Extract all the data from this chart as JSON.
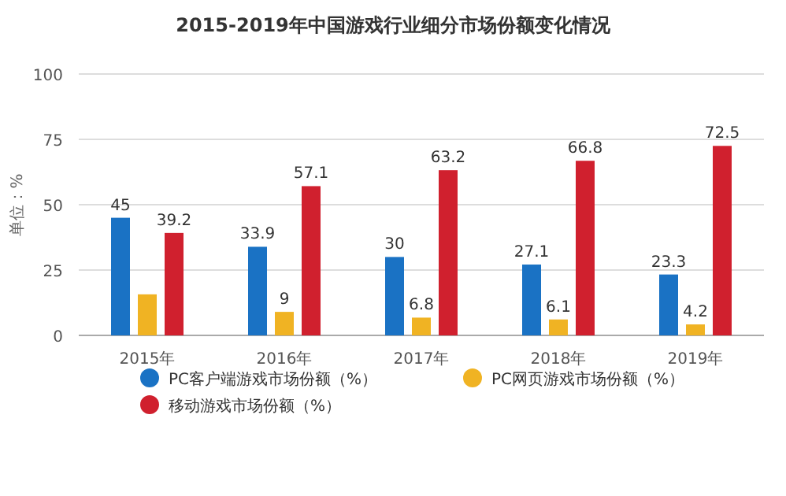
{
  "chart_data": {
    "type": "bar",
    "title": "2015-2019年中国游戏行业细分市场份额变化情况",
    "ylabel": "单位：%",
    "categories": [
      "2015年",
      "2016年",
      "2017年",
      "2018年",
      "2019年"
    ],
    "series": [
      {
        "name": "PC客户端游戏市场份额（%）",
        "color": "#1a72c4",
        "values": [
          45,
          33.9,
          30,
          27.1,
          23.3
        ],
        "value_labels": [
          "45",
          "33.9",
          "30",
          "27.1",
          "23.3"
        ]
      },
      {
        "name": "PC网页游戏市场份额（%）",
        "color": "#f0b323",
        "values": [
          15.7,
          9,
          6.8,
          6.1,
          4.2
        ],
        "value_labels": [
          null,
          "9",
          "6.8",
          "6.1",
          "4.2"
        ]
      },
      {
        "name": "移动游戏市场份额（%）",
        "color": "#d0202e",
        "values": [
          39.2,
          57.1,
          63.2,
          66.8,
          72.5
        ],
        "value_labels": [
          "39.2",
          "57.1",
          "63.2",
          "66.8",
          "72.5"
        ]
      }
    ],
    "ylim": [
      0,
      100
    ],
    "yticks": [
      0,
      25,
      50,
      75,
      100
    ],
    "grid": "y",
    "legend": "bottom"
  }
}
